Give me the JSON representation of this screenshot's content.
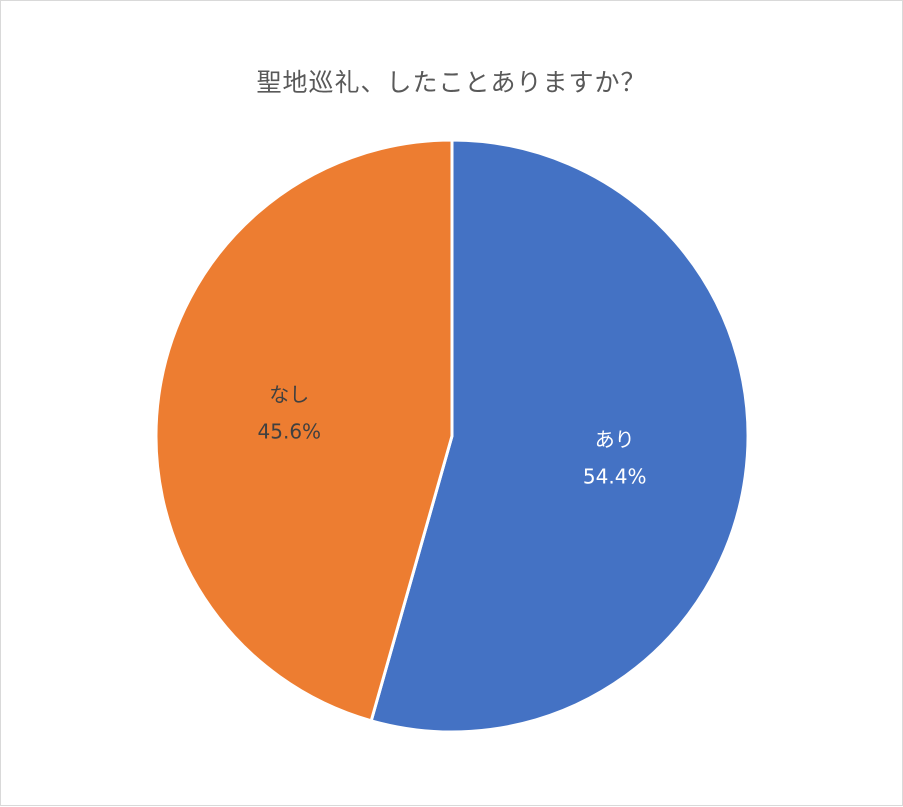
{
  "chart_data": {
    "type": "pie",
    "title": "聖地巡礼、したことありますか？",
    "categories": [
      "あり",
      "なし"
    ],
    "values": [
      54.4,
      45.6
    ],
    "unit": "%",
    "value_labels": [
      "54.4%",
      "45.6%"
    ],
    "colors": [
      "#4472C4",
      "#ED7D31"
    ],
    "label_colors": [
      "#ffffff",
      "#404040"
    ],
    "slice_border_color": "#ffffff",
    "start_angle": "12 o'clock",
    "direction": "clockwise",
    "legend": "none",
    "data_labels": "inside"
  }
}
